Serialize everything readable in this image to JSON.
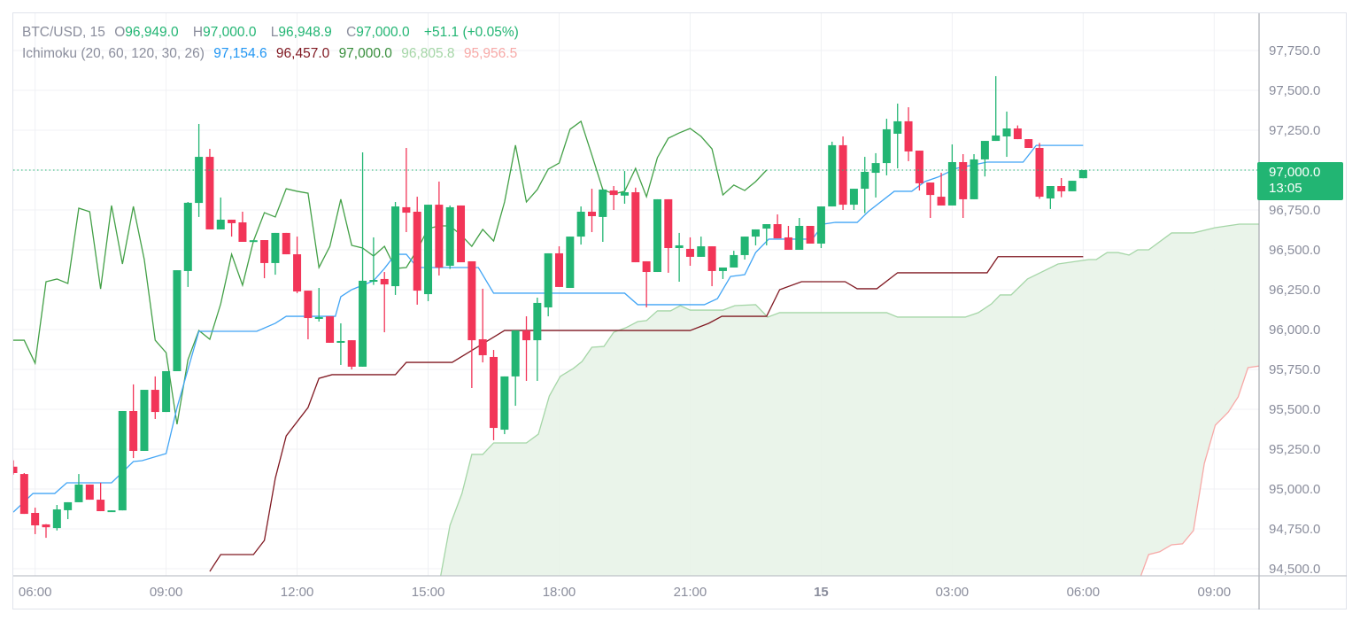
{
  "legend": {
    "symbol": "BTC/USD, 15",
    "open_label": "O",
    "open": "96,949.0",
    "high_label": "H",
    "high": "97,000.0",
    "low_label": "L",
    "low": "96,948.9",
    "close_label": "C",
    "close": "97,000.0",
    "change": "+51.1 (+0.05%)",
    "indicator": "Ichimoku (20, 60, 120, 30, 26)",
    "conversion": "97,154.6",
    "base": "96,457.0",
    "lagging": "97,000.0",
    "lead1": "96,805.8",
    "lead2": "95,956.5"
  },
  "last_price": {
    "value": "97,000.0",
    "countdown": "13:05"
  },
  "colors": {
    "up": "#22b573",
    "down": "#f23558",
    "conversion": "#42a5f5",
    "base": "#801922",
    "lagging": "#43a047",
    "lead1": "#a5d6a7",
    "lead2": "#f7a9a7",
    "cloud": "#e8f3e8",
    "grid": "#f0f1f4"
  },
  "chart_data": {
    "type": "candlestick",
    "title": "BTC/USD, 15",
    "interval_minutes": 15,
    "ylim": [
      94500,
      97800
    ],
    "grid": true,
    "y_ticks": [
      {
        "value": 97750,
        "label": "97,750.0"
      },
      {
        "value": 97500,
        "label": "97,500.0"
      },
      {
        "value": 97250,
        "label": "97,250.0"
      },
      {
        "value": 96750,
        "label": "96,750.0"
      },
      {
        "value": 96500,
        "label": "96,500.0"
      },
      {
        "value": 96250,
        "label": "96,250.0"
      },
      {
        "value": 96000,
        "label": "96,000.0"
      },
      {
        "value": 95750,
        "label": "95,750.0"
      },
      {
        "value": 95500,
        "label": "95,500.0"
      },
      {
        "value": 95250,
        "label": "95,250.0"
      },
      {
        "value": 95000,
        "label": "95,000.0"
      },
      {
        "value": 94750,
        "label": "94,750.0"
      },
      {
        "value": 94500,
        "label": "94,500.0"
      }
    ],
    "grid_y": [
      97750,
      97500,
      97250,
      97000,
      96750,
      96500,
      96250,
      96000,
      95750,
      95500,
      95250,
      95000,
      94750,
      94500
    ],
    "x_ticks": [
      {
        "index": 2,
        "label": "06:00"
      },
      {
        "index": 14,
        "label": "09:00"
      },
      {
        "index": 26,
        "label": "12:00"
      },
      {
        "index": 38,
        "label": "15:00"
      },
      {
        "index": 50,
        "label": "18:00"
      },
      {
        "index": 62,
        "label": "21:00"
      },
      {
        "index": 74,
        "label": "15",
        "bold": true
      },
      {
        "index": 86,
        "label": "03:00"
      },
      {
        "index": 98,
        "label": "06:00"
      },
      {
        "index": 110,
        "label": "09:00"
      }
    ],
    "x_range": [
      -1,
      114.2
    ],
    "last_close": 97000,
    "ohlc": [
      [
        95140,
        95180,
        95090,
        95100
      ],
      [
        95094,
        95100,
        94844,
        94844
      ],
      [
        94850,
        94883,
        94717,
        94772
      ],
      [
        94778,
        94780,
        94694,
        94760
      ],
      [
        94755,
        94900,
        94740,
        94872
      ],
      [
        94867,
        94917,
        94811,
        94917
      ],
      [
        94917,
        95094,
        94917,
        95028
      ],
      [
        95028,
        95028,
        94933,
        94933
      ],
      [
        94933,
        95039,
        94861,
        94861
      ],
      [
        94861,
        94866,
        94861,
        94866
      ],
      [
        94866,
        95489,
        94866,
        95489
      ],
      [
        95489,
        95656,
        95194,
        95239
      ],
      [
        95239,
        95622,
        95239,
        95622
      ],
      [
        95622,
        95706,
        95439,
        95483
      ],
      [
        95483,
        95739,
        95483,
        95739
      ],
      [
        95739,
        96372,
        95739,
        96372
      ],
      [
        96367,
        96800,
        96267,
        96795
      ],
      [
        96794,
        97289,
        96706,
        97083
      ],
      [
        97083,
        97133,
        96628,
        96628
      ],
      [
        96628,
        96828,
        96628,
        96689
      ],
      [
        96689,
        96689,
        96583,
        96667
      ],
      [
        96672,
        96739,
        96550,
        96550
      ],
      [
        96555,
        96560,
        96555,
        96560
      ],
      [
        96561,
        96561,
        96322,
        96417
      ],
      [
        96417,
        96606,
        96344,
        96606
      ],
      [
        96606,
        96606,
        96472,
        96472
      ],
      [
        96472,
        96583,
        96228,
        96239
      ],
      [
        96244,
        96244,
        95939,
        96072
      ],
      [
        96072,
        96261,
        96050,
        96078
      ],
      [
        96083,
        96083,
        95917,
        95917
      ],
      [
        95922,
        96039,
        95778,
        95928
      ],
      [
        95933,
        95933,
        95750,
        95767
      ],
      [
        95767,
        97111,
        95767,
        96306
      ],
      [
        96306,
        96578,
        96280,
        96311
      ],
      [
        96317,
        96361,
        95983,
        96283
      ],
      [
        96272,
        96800,
        96217,
        96772
      ],
      [
        96767,
        97139,
        96611,
        96733
      ],
      [
        96739,
        96833,
        96156,
        96244
      ],
      [
        96222,
        96783,
        96178,
        96783
      ],
      [
        96783,
        96928,
        96339,
        96389
      ],
      [
        96400,
        96778,
        96380,
        96767
      ],
      [
        96778,
        96778,
        96422,
        96422
      ],
      [
        96428,
        96428,
        95633,
        95933
      ],
      [
        95939,
        96256,
        95794,
        95839
      ],
      [
        95828,
        95872,
        95306,
        95383
      ],
      [
        95372,
        95706,
        95344,
        95706
      ],
      [
        95706,
        95994,
        95522,
        95994
      ],
      [
        95994,
        96083,
        95678,
        95933
      ],
      [
        95933,
        96200,
        95678,
        96167
      ],
      [
        96139,
        96478,
        96083,
        96478
      ],
      [
        96478,
        96522,
        96267,
        96267
      ],
      [
        96261,
        96583,
        96261,
        96583
      ],
      [
        96583,
        96772,
        96533,
        96739
      ],
      [
        96739,
        96883,
        96611,
        96711
      ],
      [
        96706,
        96878,
        96550,
        96878
      ],
      [
        96872,
        96900,
        96750,
        96844
      ],
      [
        96840,
        96994,
        96789,
        96861
      ],
      [
        96861,
        96890,
        96422,
        96422
      ],
      [
        96428,
        96428,
        96139,
        96361
      ],
      [
        96361,
        96817,
        96361,
        96817
      ],
      [
        96817,
        96817,
        96356,
        96511
      ],
      [
        96511,
        96606,
        96300,
        96528
      ],
      [
        96506,
        96578,
        96400,
        96456
      ],
      [
        96456,
        96583,
        96456,
        96522
      ],
      [
        96522,
        96522,
        96272,
        96367
      ],
      [
        96367,
        96389,
        96317,
        96389
      ],
      [
        96389,
        96494,
        96389,
        96467
      ],
      [
        96467,
        96583,
        96439,
        96583
      ],
      [
        96583,
        96628,
        96528,
        96628
      ],
      [
        96633,
        96661,
        96528,
        96661
      ],
      [
        96661,
        96722,
        96572,
        96572
      ],
      [
        96578,
        96650,
        96500,
        96500
      ],
      [
        96500,
        96700,
        96500,
        96650
      ],
      [
        96650,
        96650,
        96539,
        96539
      ],
      [
        96539,
        96772,
        96511,
        96772
      ],
      [
        96772,
        97178,
        96772,
        97156
      ],
      [
        97156,
        97211,
        96750,
        96783
      ],
      [
        96783,
        96883,
        96750,
        96883
      ],
      [
        96883,
        97083,
        96730,
        96989
      ],
      [
        96983,
        97106,
        96828,
        97044
      ],
      [
        97044,
        97322,
        96967,
        97256
      ],
      [
        97228,
        97417,
        97011,
        97306
      ],
      [
        97306,
        97394,
        97056,
        97117
      ],
      [
        97122,
        97122,
        96872,
        96917
      ],
      [
        96922,
        96922,
        96700,
        96844
      ],
      [
        96833,
        96983,
        96778,
        96778
      ],
      [
        96778,
        97161,
        96778,
        97050
      ],
      [
        97050,
        97100,
        96700,
        96817
      ],
      [
        96817,
        97100,
        96817,
        97067
      ],
      [
        97067,
        97183,
        96960,
        97183
      ],
      [
        97183,
        97589,
        97183,
        97217
      ],
      [
        97211,
        97367,
        97083,
        97261
      ],
      [
        97261,
        97280,
        97194,
        97194
      ],
      [
        97194,
        97194,
        97139,
        97139
      ],
      [
        97139,
        97170,
        96820,
        96833
      ],
      [
        96822,
        96900,
        96756,
        96900
      ],
      [
        96900,
        96950,
        96830,
        96867
      ],
      [
        96867,
        96933,
        96867,
        96933
      ],
      [
        96949,
        97000,
        96948.9,
        97000
      ]
    ],
    "ichimoku": {
      "conversion": [
        [
          0,
          94855
        ],
        [
          1.8,
          94972
        ],
        [
          3.8,
          94972
        ],
        [
          4.9,
          95039
        ],
        [
          9,
          95039
        ],
        [
          11,
          95172
        ],
        [
          11.8,
          95178
        ],
        [
          14,
          95222
        ],
        [
          15,
          95511
        ],
        [
          17,
          95989
        ],
        [
          22.3,
          95989
        ],
        [
          24,
          96039
        ],
        [
          25,
          96083
        ],
        [
          29.5,
          96083
        ],
        [
          30,
          96206
        ],
        [
          31,
          96250
        ],
        [
          33,
          96306
        ],
        [
          34,
          96383
        ],
        [
          35,
          96472
        ],
        [
          36,
          96472
        ],
        [
          37,
          96389
        ],
        [
          42.6,
          96389
        ],
        [
          44,
          96228
        ],
        [
          56,
          96228
        ],
        [
          57.2,
          96156
        ],
        [
          63.3,
          96156
        ],
        [
          64.5,
          96194
        ],
        [
          65.7,
          96333
        ],
        [
          67,
          96344
        ],
        [
          68,
          96483
        ],
        [
          69.2,
          96567
        ],
        [
          73.2,
          96567
        ],
        [
          74.2,
          96661
        ],
        [
          75.3,
          96672
        ],
        [
          77.3,
          96672
        ],
        [
          78.3,
          96739
        ],
        [
          80.7,
          96867
        ],
        [
          82.3,
          96867
        ],
        [
          83.5,
          96928
        ],
        [
          84.7,
          96956
        ],
        [
          86.4,
          97011
        ],
        [
          89.2,
          97050
        ],
        [
          92.5,
          97050
        ],
        [
          93.7,
          97155
        ],
        [
          98,
          97155
        ]
      ],
      "base": [
        [
          18,
          94483
        ],
        [
          19,
          94589
        ],
        [
          22,
          94589
        ],
        [
          23,
          94678
        ],
        [
          24,
          95067
        ],
        [
          25,
          95333
        ],
        [
          27,
          95511
        ],
        [
          28,
          95694
        ],
        [
          29.2,
          95717
        ],
        [
          35,
          95717
        ],
        [
          36,
          95794
        ],
        [
          40.2,
          95794
        ],
        [
          41.8,
          95861
        ],
        [
          45,
          95994
        ],
        [
          62,
          95994
        ],
        [
          63.7,
          96039
        ],
        [
          64.9,
          96083
        ],
        [
          69,
          96083
        ],
        [
          70.2,
          96250
        ],
        [
          72.2,
          96300
        ],
        [
          76.2,
          96300
        ],
        [
          77.3,
          96256
        ],
        [
          79.1,
          96256
        ],
        [
          81,
          96356
        ],
        [
          89.2,
          96356
        ],
        [
          90.2,
          96457
        ],
        [
          98,
          96457
        ]
      ],
      "lagging": [
        95933,
        95933,
        95789,
        96300,
        96317,
        96289,
        96761,
        96739,
        96255,
        96778,
        96411,
        96772,
        96439,
        95933,
        95855,
        95406,
        95811,
        95994,
        95939,
        96161,
        96472,
        96278,
        96555,
        96733,
        96706,
        96883,
        96867,
        96855,
        96389,
        96522,
        96817,
        96528,
        96511,
        96461,
        96522,
        96383,
        96389,
        96500,
        96633,
        96650,
        96650,
        96594,
        96522,
        96628,
        96555,
        96800,
        97156,
        96800,
        96878,
        97006,
        97044,
        97256,
        97306,
        97094,
        96878,
        96850,
        96867,
        97011,
        96833,
        97078,
        97200,
        97233,
        97261,
        97211,
        97133,
        96844,
        96906,
        96872,
        96928,
        97000
      ],
      "lead1": [
        [
          39,
          94400
        ],
        [
          40,
          94772
        ],
        [
          41.1,
          94972
        ],
        [
          42,
          95217
        ],
        [
          43,
          95217
        ],
        [
          44,
          95289
        ],
        [
          47,
          95289
        ],
        [
          48.1,
          95344
        ],
        [
          49.1,
          95583
        ],
        [
          50.1,
          95706
        ],
        [
          51.3,
          95756
        ],
        [
          52.1,
          95800
        ],
        [
          53,
          95889
        ],
        [
          54.1,
          95894
        ],
        [
          55,
          95983
        ],
        [
          56.1,
          96011
        ],
        [
          57.2,
          96050
        ],
        [
          58,
          96056
        ],
        [
          59,
          96117
        ],
        [
          60.2,
          96117
        ],
        [
          61.1,
          96150
        ],
        [
          62,
          96122
        ],
        [
          65,
          96122
        ],
        [
          66.1,
          96150
        ],
        [
          68,
          96156
        ],
        [
          69.1,
          96078
        ],
        [
          70.2,
          96106
        ],
        [
          80,
          96106
        ],
        [
          81,
          96078
        ],
        [
          87.2,
          96078
        ],
        [
          88.4,
          96106
        ],
        [
          89.6,
          96161
        ],
        [
          90.4,
          96217
        ],
        [
          91.4,
          96217
        ],
        [
          92.9,
          96317
        ],
        [
          93.7,
          96344
        ],
        [
          95.7,
          96411
        ],
        [
          98.5,
          96439
        ],
        [
          99.2,
          96439
        ],
        [
          100.2,
          96483
        ],
        [
          101.2,
          96483
        ],
        [
          102.2,
          96467
        ],
        [
          103,
          96500
        ],
        [
          104,
          96500
        ],
        [
          106.1,
          96606
        ],
        [
          108.1,
          96606
        ],
        [
          110.1,
          96639
        ],
        [
          112.3,
          96661
        ],
        [
          114.2,
          96661
        ]
      ],
      "lead2": [
        [
          103.2,
          94440
        ],
        [
          104,
          94589
        ],
        [
          105,
          94606
        ],
        [
          106.1,
          94650
        ],
        [
          107.1,
          94656
        ],
        [
          108.1,
          94739
        ],
        [
          109.1,
          95161
        ],
        [
          110.1,
          95400
        ],
        [
          111.3,
          95483
        ],
        [
          112.2,
          95578
        ],
        [
          113.1,
          95761
        ],
        [
          114.2,
          95772
        ]
      ]
    }
  }
}
